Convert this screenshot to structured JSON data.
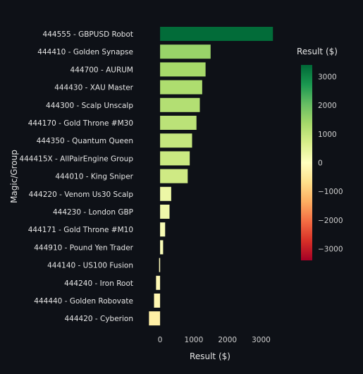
{
  "chart_data": {
    "type": "bar",
    "orientation": "horizontal",
    "title": "",
    "xlabel": "Result ($)",
    "ylabel": "Magic/Group",
    "categories": [
      "444555 - GBPUSD Robot",
      "444410 - Golden Synapse",
      "444700 - AURUM",
      "444430 - XAU Master",
      "444300 - Scalp Unscalp",
      "444170 - Gold Throne #M30",
      "444350 - Quantum Queen",
      "444415X - AllPairEngine Group",
      "444010 - King Sniper",
      "444220 - Venom Us30 Scalp",
      "444230 - London GBP",
      "444171 - Gold Throne #M10",
      "444910 - Pound Yen Trader",
      "444140 - US100 Fusion",
      "444240 - Iron Root",
      "444440 - Golden Robovate",
      "444420 - Cyberion"
    ],
    "values": [
      3350,
      1500,
      1350,
      1250,
      1180,
      1080,
      950,
      880,
      820,
      330,
      280,
      150,
      90,
      -30,
      -120,
      -180,
      -330
    ],
    "xlim": [
      -400,
      3450
    ],
    "xticks": [
      0,
      1000,
      2000,
      3000
    ],
    "xtick_labels": [
      "0",
      "1000",
      "2000",
      "3000"
    ],
    "grid": false,
    "colorbar": {
      "title": "Result ($)",
      "range": [
        -3400,
        3400
      ],
      "ticks": [
        3000,
        2000,
        1000,
        0,
        -1000,
        -2000,
        -3000
      ],
      "tick_labels": [
        "3000",
        "2000",
        "1000",
        "0",
        "−1000",
        "−2000",
        "−3000"
      ],
      "colorscale": [
        "#a50026",
        "#d73027",
        "#f46d43",
        "#fdae61",
        "#fee08b",
        "#ffffbf",
        "#d9ef8b",
        "#a6d96a",
        "#66bd63",
        "#1a9850",
        "#006837"
      ]
    }
  }
}
